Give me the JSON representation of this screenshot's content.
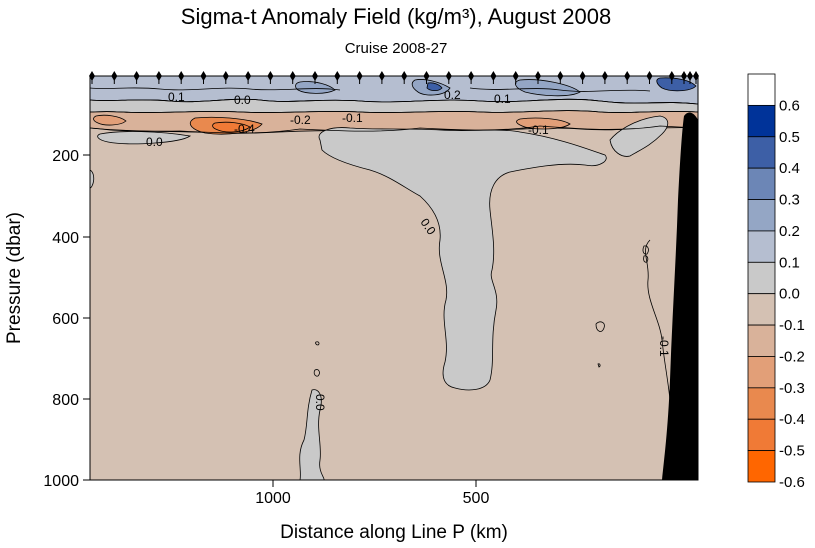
{
  "chart_data": {
    "type": "heatmap",
    "title": "Sigma-t Anomaly Field  (kg/m³),  August 2008",
    "subtitle": "Cruise 2008-27",
    "xlabel": "Distance along Line P  (km)",
    "ylabel": "Pressure  (dbar)",
    "x_ticks": [
      "1000",
      "500"
    ],
    "y_ticks": [
      "200",
      "400",
      "600",
      "800",
      "1000"
    ],
    "ylim": [
      1000,
      0
    ],
    "x_tick_values": [
      1000,
      500
    ],
    "y_tick_values": [
      200,
      400,
      600,
      800,
      1000
    ],
    "contour_labels": [
      "0.1",
      "0.0",
      "-0.2",
      "-0.1",
      "0.2",
      "0.1",
      "-0.4",
      "0.0",
      "-0.1",
      "0.0",
      "0.0",
      "-0.1"
    ],
    "colorbar": {
      "levels": [
        "0.6",
        "0.5",
        "0.4",
        "0.3",
        "0.2",
        "0.1",
        "0.0",
        "-0.1",
        "-0.2",
        "-0.3",
        "-0.4",
        "-0.5",
        "-0.6"
      ],
      "colors": [
        "#ffffff",
        "#003399",
        "#3d5fa6",
        "#6c86b6",
        "#94a6c5",
        "#b5bed0",
        "#c9c9c9",
        "#d4c1b3",
        "#d9b29a",
        "#e29f78",
        "#e9894e",
        "#f07a36",
        "#ff6600"
      ]
    },
    "background_color": "#d4c1b3",
    "near_zero_color": "#c9c9c9",
    "bathymetry_color": "#000000",
    "station_marker": "diamond"
  }
}
